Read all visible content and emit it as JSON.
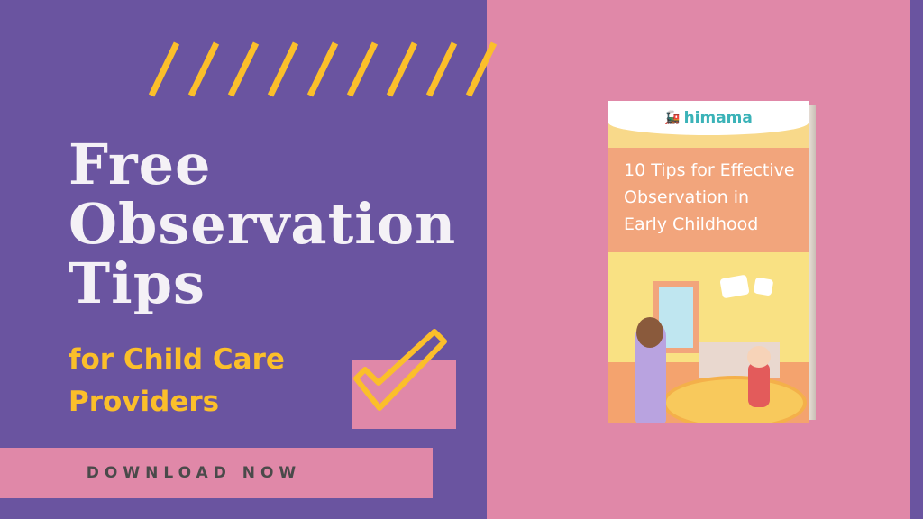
{
  "headline": {
    "line1": "Free",
    "line2": "Observation",
    "line3": "Tips"
  },
  "subheadline": {
    "line1": "for Child Care",
    "line2": "Providers"
  },
  "cta": {
    "label": "DOWNLOAD NOW"
  },
  "ebook": {
    "brand": "himama",
    "title_line1": "10 Tips for Effective",
    "title_line2": "Observation in",
    "title_line3": "Early Childhood"
  },
  "colors": {
    "purple": "#6a54a0",
    "pink": "#e088a8",
    "yellow": "#fbbf2a"
  },
  "icons": {
    "checkmark": "checkmark-icon",
    "stripes": "diagonal-stripes",
    "train": "train-icon"
  }
}
